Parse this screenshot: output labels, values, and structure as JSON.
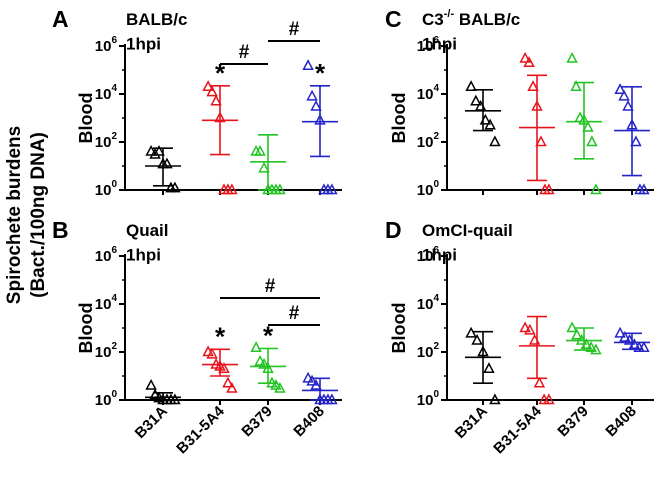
{
  "figure": {
    "global_ylabel_line1": "Spirochete burdens",
    "global_ylabel_line2": "(Bact./100ng DNA)"
  },
  "chart_data": [
    {
      "id": "A",
      "type": "scatter",
      "letter": "A",
      "title": "BALB/c",
      "subtitle": "1hpi",
      "ylabel": "Blood",
      "yscale": "log10",
      "ylim": [
        1,
        1000000
      ],
      "yticks": [
        {
          "value": 1,
          "base": "10",
          "exp": "0"
        },
        {
          "value": 100,
          "base": "10",
          "exp": "2"
        },
        {
          "value": 10000,
          "base": "10",
          "exp": "4"
        },
        {
          "value": 1000000,
          "base": "10",
          "exp": "6"
        }
      ],
      "categories": [
        "B31A",
        "B31-5A4",
        "B379",
        "B408"
      ],
      "show_xlabels": false,
      "series": [
        {
          "name": "B31A",
          "color": "#000000",
          "points": [
            40,
            30,
            40,
            12,
            12,
            1.2,
            1.2
          ],
          "center": 10,
          "err": [
            1.5,
            55
          ]
        },
        {
          "name": "B31-5A4",
          "color": "#e8141c",
          "points": [
            20000,
            12000,
            5000,
            1000,
            1,
            1,
            1
          ],
          "center": 800,
          "err": [
            30,
            22000
          ],
          "star": "*"
        },
        {
          "name": "B379",
          "color": "#22c322",
          "points": [
            40,
            40,
            8,
            1,
            1,
            1,
            1
          ],
          "center": 15,
          "err": [
            1,
            200
          ],
          "star": ""
        },
        {
          "name": "B408",
          "color": "#2424c8",
          "points": [
            150000,
            8000,
            3000,
            800,
            1,
            1,
            1
          ],
          "center": 700,
          "err": [
            25,
            22000
          ],
          "star": "*"
        }
      ],
      "brackets": [
        {
          "from": "B31-5A4",
          "to": "B379",
          "label": "#",
          "level": 1
        },
        {
          "from": "B379",
          "to": "B408",
          "label": "#",
          "level": 2
        }
      ]
    },
    {
      "id": "B",
      "type": "scatter",
      "letter": "B",
      "title": "Quail",
      "subtitle": "1hpi",
      "ylabel": "Blood",
      "yscale": "log10",
      "ylim": [
        1,
        1000000
      ],
      "yticks": [
        {
          "value": 1,
          "base": "10",
          "exp": "0"
        },
        {
          "value": 100,
          "base": "10",
          "exp": "2"
        },
        {
          "value": 10000,
          "base": "10",
          "exp": "4"
        },
        {
          "value": 1000000,
          "base": "10",
          "exp": "6"
        }
      ],
      "categories": [
        "B31A",
        "B31-5A4",
        "B379",
        "B408"
      ],
      "show_xlabels": true,
      "series": [
        {
          "name": "B31A",
          "color": "#000000",
          "points": [
            4,
            1.6,
            1.2,
            1,
            1,
            1,
            1
          ],
          "center": 1.3,
          "err": [
            1,
            2
          ],
          "star": ""
        },
        {
          "name": "B31-5A4",
          "color": "#e8141c",
          "points": [
            100,
            80,
            30,
            25,
            20,
            5,
            3
          ],
          "center": 30,
          "err": [
            10,
            130
          ],
          "star": "*"
        },
        {
          "name": "B379",
          "color": "#22c322",
          "points": [
            150,
            40,
            30,
            20,
            5,
            4,
            3
          ],
          "center": 25,
          "err": [
            5,
            140
          ],
          "star": "*"
        },
        {
          "name": "B408",
          "color": "#2424c8",
          "points": [
            8,
            6,
            4,
            1,
            1,
            1,
            1
          ],
          "center": 2.5,
          "err": [
            1,
            8
          ],
          "star": ""
        }
      ],
      "brackets": [
        {
          "from": "B31-5A4",
          "to": "B408",
          "label": "#",
          "level": 2
        },
        {
          "from": "B379",
          "to": "B408",
          "label": "#",
          "level": 1
        }
      ]
    },
    {
      "id": "C",
      "type": "scatter",
      "letter": "C",
      "title": "C3",
      "title_sup": "-/-",
      "title_rest": " BALB/c",
      "subtitle": "1hpi",
      "ylabel": "Blood",
      "yscale": "log10",
      "ylim": [
        1,
        1000000
      ],
      "yticks": [
        {
          "value": 1,
          "base": "10",
          "exp": "0"
        },
        {
          "value": 100,
          "base": "10",
          "exp": "2"
        },
        {
          "value": 10000,
          "base": "10",
          "exp": "4"
        },
        {
          "value": 1000000,
          "base": "10",
          "exp": "6"
        }
      ],
      "categories": [
        "B31A",
        "B31-5A4",
        "B379",
        "B408"
      ],
      "show_xlabels": false,
      "series": [
        {
          "name": "B31A",
          "color": "#000000",
          "points": [
            20000,
            5000,
            3000,
            800,
            500,
            100
          ],
          "center": 2000,
          "err": [
            300,
            15000
          ],
          "star": ""
        },
        {
          "name": "B31-5A4",
          "color": "#e8141c",
          "points": [
            300000,
            200000,
            20000,
            3000,
            100,
            1,
            1
          ],
          "center": 400,
          "err": [
            2.5,
            60000
          ],
          "star": ""
        },
        {
          "name": "B379",
          "color": "#22c322",
          "points": [
            300000,
            20000,
            1000,
            800,
            400,
            100,
            1
          ],
          "center": 700,
          "err": [
            20,
            30000
          ],
          "star": ""
        },
        {
          "name": "B408",
          "color": "#2424c8",
          "points": [
            15000,
            8000,
            3000,
            500,
            100,
            1,
            1
          ],
          "center": 300,
          "err": [
            4,
            20000
          ],
          "star": ""
        }
      ],
      "brackets": []
    },
    {
      "id": "D",
      "type": "scatter",
      "letter": "D",
      "title": "OmCI-quail",
      "subtitle": "1hpi",
      "ylabel": "Blood",
      "yscale": "log10",
      "ylim": [
        1,
        1000000
      ],
      "yticks": [
        {
          "value": 1,
          "base": "10",
          "exp": "0"
        },
        {
          "value": 100,
          "base": "10",
          "exp": "2"
        },
        {
          "value": 10000,
          "base": "10",
          "exp": "4"
        },
        {
          "value": 1000000,
          "base": "10",
          "exp": "6"
        }
      ],
      "categories": [
        "B31A",
        "B31-5A4",
        "B379",
        "B408"
      ],
      "show_xlabels": true,
      "series": [
        {
          "name": "B31A",
          "color": "#000000",
          "points": [
            600,
            300,
            100,
            20,
            1
          ],
          "center": 60,
          "err": [
            5,
            700
          ],
          "star": ""
        },
        {
          "name": "B31-5A4",
          "color": "#e8141c",
          "points": [
            1000,
            800,
            300,
            5,
            1,
            1
          ],
          "center": 180,
          "err": [
            8,
            3000
          ],
          "star": ""
        },
        {
          "name": "B379",
          "color": "#22c322",
          "points": [
            1000,
            500,
            300,
            200,
            150,
            120
          ],
          "center": 300,
          "err": [
            120,
            1000
          ],
          "star": ""
        },
        {
          "name": "B408",
          "color": "#2424c8",
          "points": [
            600,
            400,
            300,
            200,
            150,
            150
          ],
          "center": 250,
          "err": [
            130,
            600
          ],
          "star": ""
        }
      ],
      "brackets": []
    }
  ]
}
